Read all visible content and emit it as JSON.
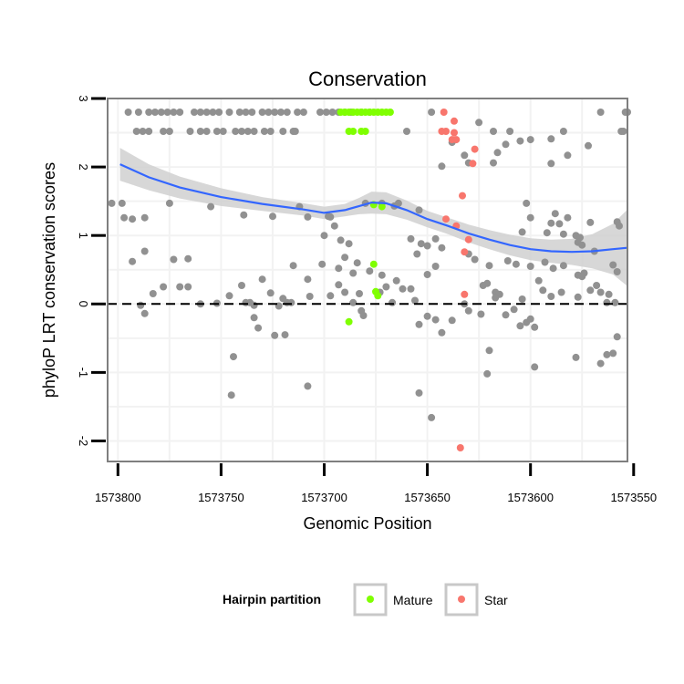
{
  "chart_data": {
    "type": "scatter",
    "title": "Conservation",
    "xlabel": "Genomic Position",
    "ylabel": "phyloP LRT conservation scores",
    "x_reversed": true,
    "xlim": [
      1573805,
      1573553
    ],
    "ylim": [
      -2.3,
      3.0
    ],
    "x_ticks": [
      1573800,
      1573750,
      1573700,
      1573650,
      1573600,
      1573550
    ],
    "x_tick_labels": [
      "1573800",
      "1573750",
      "1573700",
      "1573650",
      "1573600",
      "1573550"
    ],
    "y_ticks": [
      -2,
      -1,
      0,
      1,
      2,
      3
    ],
    "y_tick_labels": [
      "-2",
      "-1",
      "0",
      "1",
      "2",
      "3"
    ],
    "reference_line": {
      "y": 0,
      "style": "dashed"
    },
    "legend": {
      "title": "Hairpin partition",
      "position": "bottom",
      "entries": [
        {
          "label": "Mature",
          "color": "#7fff00"
        },
        {
          "label": "Star",
          "color": "#f8766d"
        }
      ]
    },
    "colors": {
      "background_points": "#919191",
      "mature": "#7fff00",
      "star": "#f8766d",
      "smooth_line": "#3366ff",
      "ribbon": "#d0d0d0"
    },
    "smooth": {
      "x": [
        1573799,
        1573785,
        1573770,
        1573750,
        1573730,
        1573710,
        1573700,
        1573690,
        1573683,
        1573677,
        1573670,
        1573660,
        1573650,
        1573640,
        1573630,
        1573620,
        1573610,
        1573600,
        1573590,
        1573580,
        1573570,
        1573560,
        1573553
      ],
      "y": [
        2.04,
        1.85,
        1.7,
        1.56,
        1.46,
        1.38,
        1.33,
        1.37,
        1.43,
        1.48,
        1.47,
        1.37,
        1.24,
        1.14,
        1.03,
        0.94,
        0.86,
        0.8,
        0.77,
        0.76,
        0.77,
        0.8,
        0.82
      ],
      "upper": [
        2.28,
        2.04,
        1.86,
        1.69,
        1.56,
        1.47,
        1.42,
        1.46,
        1.55,
        1.64,
        1.63,
        1.51,
        1.36,
        1.26,
        1.16,
        1.08,
        1.01,
        0.96,
        0.94,
        0.95,
        1.02,
        1.17,
        1.38
      ],
      "lower": [
        1.8,
        1.66,
        1.54,
        1.43,
        1.36,
        1.29,
        1.24,
        1.28,
        1.31,
        1.32,
        1.31,
        1.23,
        1.12,
        1.02,
        0.9,
        0.8,
        0.71,
        0.64,
        0.6,
        0.57,
        0.52,
        0.43,
        0.26
      ]
    },
    "series": [
      {
        "name": "Other",
        "points": [
          [
            1573795,
            2.8
          ],
          [
            1573790,
            2.8
          ],
          [
            1573785,
            2.8
          ],
          [
            1573782,
            2.8
          ],
          [
            1573779,
            2.8
          ],
          [
            1573776,
            2.8
          ],
          [
            1573773,
            2.8
          ],
          [
            1573770,
            2.8
          ],
          [
            1573763,
            2.8
          ],
          [
            1573760,
            2.8
          ],
          [
            1573757,
            2.8
          ],
          [
            1573754,
            2.8
          ],
          [
            1573751,
            2.8
          ],
          [
            1573746,
            2.8
          ],
          [
            1573741,
            2.8
          ],
          [
            1573738,
            2.8
          ],
          [
            1573735,
            2.8
          ],
          [
            1573730,
            2.8
          ],
          [
            1573727,
            2.8
          ],
          [
            1573724,
            2.8
          ],
          [
            1573721,
            2.8
          ],
          [
            1573718,
            2.8
          ],
          [
            1573713,
            2.8
          ],
          [
            1573710,
            2.8
          ],
          [
            1573702,
            2.8
          ],
          [
            1573699,
            2.8
          ],
          [
            1573696,
            2.8
          ],
          [
            1573693,
            2.8
          ],
          [
            1573690,
            2.8
          ],
          [
            1573687,
            2.8
          ],
          [
            1573682,
            2.8
          ],
          [
            1573678,
            2.8
          ],
          [
            1573648,
            2.8
          ],
          [
            1573566,
            2.8
          ],
          [
            1573554,
            2.8
          ],
          [
            1573553,
            2.8
          ],
          [
            1573791,
            2.52
          ],
          [
            1573788,
            2.52
          ],
          [
            1573785,
            2.52
          ],
          [
            1573778,
            2.52
          ],
          [
            1573775,
            2.52
          ],
          [
            1573765,
            2.52
          ],
          [
            1573760,
            2.52
          ],
          [
            1573757,
            2.52
          ],
          [
            1573752,
            2.52
          ],
          [
            1573749,
            2.52
          ],
          [
            1573743,
            2.52
          ],
          [
            1573740,
            2.52
          ],
          [
            1573737,
            2.52
          ],
          [
            1573734,
            2.52
          ],
          [
            1573729,
            2.52
          ],
          [
            1573726,
            2.52
          ],
          [
            1573720,
            2.52
          ],
          [
            1573715,
            2.52
          ],
          [
            1573714,
            2.52
          ],
          [
            1573660,
            2.52
          ],
          [
            1573618,
            2.52
          ],
          [
            1573610,
            2.52
          ],
          [
            1573584,
            2.52
          ],
          [
            1573556,
            2.52
          ],
          [
            1573555,
            2.52
          ],
          [
            1573625,
            2.65
          ],
          [
            1573590,
            2.41
          ],
          [
            1573605,
            2.38
          ],
          [
            1573600,
            2.4
          ],
          [
            1573638,
            2.36
          ],
          [
            1573612,
            2.33
          ],
          [
            1573572,
            2.31
          ],
          [
            1573616,
            2.21
          ],
          [
            1573632,
            2.17
          ],
          [
            1573582,
            2.17
          ],
          [
            1573630,
            2.06
          ],
          [
            1573643,
            2.01
          ],
          [
            1573590,
            2.05
          ],
          [
            1573618,
            2.06
          ],
          [
            1573803,
            1.47
          ],
          [
            1573798,
            1.47
          ],
          [
            1573775,
            1.47
          ],
          [
            1573755,
            1.42
          ],
          [
            1573739,
            1.3
          ],
          [
            1573725,
            1.28
          ],
          [
            1573712,
            1.42
          ],
          [
            1573708,
            1.27
          ],
          [
            1573698,
            1.28
          ],
          [
            1573695,
            1.14
          ],
          [
            1573680,
            1.47
          ],
          [
            1573672,
            1.47
          ],
          [
            1573666,
            1.43
          ],
          [
            1573664,
            1.47
          ],
          [
            1573654,
            1.37
          ],
          [
            1573602,
            1.47
          ],
          [
            1573588,
            1.32
          ],
          [
            1573582,
            1.26
          ],
          [
            1573571,
            1.19
          ],
          [
            1573558,
            1.2
          ],
          [
            1573557,
            1.14
          ],
          [
            1573600,
            1.26
          ],
          [
            1573590,
            1.18
          ],
          [
            1573586,
            1.17
          ],
          [
            1573604,
            1.05
          ],
          [
            1573592,
            1.04
          ],
          [
            1573584,
            1.02
          ],
          [
            1573578,
            1.0
          ],
          [
            1573576,
            0.97
          ],
          [
            1573797,
            1.26
          ],
          [
            1573793,
            1.24
          ],
          [
            1573787,
            1.26
          ],
          [
            1573700,
            1.0
          ],
          [
            1573697,
            1.27
          ],
          [
            1573692,
            0.93
          ],
          [
            1573690,
            0.68
          ],
          [
            1573688,
            0.88
          ],
          [
            1573684,
            0.6
          ],
          [
            1573678,
            0.48
          ],
          [
            1573672,
            0.42
          ],
          [
            1573658,
            0.95
          ],
          [
            1573653,
            0.88
          ],
          [
            1573650,
            0.85
          ],
          [
            1573646,
            0.95
          ],
          [
            1573643,
            0.82
          ],
          [
            1573655,
            0.73
          ],
          [
            1573646,
            0.55
          ],
          [
            1573650,
            0.43
          ],
          [
            1573630,
            0.73
          ],
          [
            1573627,
            0.65
          ],
          [
            1573620,
            0.56
          ],
          [
            1573611,
            0.63
          ],
          [
            1573607,
            0.58
          ],
          [
            1573600,
            0.55
          ],
          [
            1573593,
            0.61
          ],
          [
            1573589,
            0.52
          ],
          [
            1573584,
            0.56
          ],
          [
            1573577,
            0.42
          ],
          [
            1573574,
            0.45
          ],
          [
            1573569,
            0.77
          ],
          [
            1573560,
            0.57
          ],
          [
            1573558,
            0.47
          ],
          [
            1573577,
            0.9
          ],
          [
            1573575,
            0.86
          ],
          [
            1573793,
            0.62
          ],
          [
            1573787,
            0.77
          ],
          [
            1573773,
            0.65
          ],
          [
            1573766,
            0.66
          ],
          [
            1573778,
            0.25
          ],
          [
            1573783,
            0.15
          ],
          [
            1573766,
            0.25
          ],
          [
            1573770,
            0.25
          ],
          [
            1573789,
            -0.02
          ],
          [
            1573787,
            -0.14
          ],
          [
            1573760,
            0.0
          ],
          [
            1573752,
            0.01
          ],
          [
            1573746,
            0.12
          ],
          [
            1573740,
            0.27
          ],
          [
            1573738,
            0.02
          ],
          [
            1573736,
            0.02
          ],
          [
            1573734,
            -0.02
          ],
          [
            1573734,
            -0.2
          ],
          [
            1573732,
            -0.35
          ],
          [
            1573730,
            0.36
          ],
          [
            1573726,
            0.16
          ],
          [
            1573722,
            -0.03
          ],
          [
            1573720,
            0.08
          ],
          [
            1573718,
            0.02
          ],
          [
            1573716,
            0.02
          ],
          [
            1573719,
            -0.45
          ],
          [
            1573724,
            -0.46
          ],
          [
            1573715,
            0.56
          ],
          [
            1573707,
            0.11
          ],
          [
            1573708,
            0.36
          ],
          [
            1573701,
            0.58
          ],
          [
            1573697,
            0.12
          ],
          [
            1573693,
            0.28
          ],
          [
            1573693,
            0.52
          ],
          [
            1573690,
            0.17
          ],
          [
            1573686,
            0.45
          ],
          [
            1573686,
            0.02
          ],
          [
            1573683,
            0.15
          ],
          [
            1573682,
            -0.1
          ],
          [
            1573681,
            -0.17
          ],
          [
            1573673,
            0.17
          ],
          [
            1573670,
            0.25
          ],
          [
            1573667,
            0.02
          ],
          [
            1573665,
            0.34
          ],
          [
            1573662,
            0.22
          ],
          [
            1573658,
            0.22
          ],
          [
            1573656,
            0.05
          ],
          [
            1573654,
            -0.3
          ],
          [
            1573650,
            -0.18
          ],
          [
            1573646,
            -0.23
          ],
          [
            1573638,
            -0.24
          ],
          [
            1573632,
            0.0
          ],
          [
            1573630,
            -0.1
          ],
          [
            1573624,
            -0.15
          ],
          [
            1573621,
            0.3
          ],
          [
            1573617,
            0.17
          ],
          [
            1573615,
            0.14
          ],
          [
            1573612,
            -0.16
          ],
          [
            1573608,
            -0.08
          ],
          [
            1573605,
            -0.32
          ],
          [
            1573602,
            -0.27
          ],
          [
            1573600,
            -0.22
          ],
          [
            1573598,
            -0.34
          ],
          [
            1573596,
            0.34
          ],
          [
            1573594,
            0.2
          ],
          [
            1573590,
            0.11
          ],
          [
            1573585,
            0.17
          ],
          [
            1573577,
            0.1
          ],
          [
            1573575,
            0.4
          ],
          [
            1573571,
            0.2
          ],
          [
            1573568,
            0.27
          ],
          [
            1573566,
            0.17
          ],
          [
            1573563,
            0.02
          ],
          [
            1573562,
            0.14
          ],
          [
            1573559,
            0.02
          ],
          [
            1573623,
            0.27
          ],
          [
            1573617,
            0.09
          ],
          [
            1573604,
            0.07
          ],
          [
            1573744,
            -0.77
          ],
          [
            1573745,
            -1.33
          ],
          [
            1573708,
            -1.2
          ],
          [
            1573654,
            -1.3
          ],
          [
            1573648,
            -1.66
          ],
          [
            1573643,
            -0.42
          ],
          [
            1573620,
            -0.68
          ],
          [
            1573621,
            -1.02
          ],
          [
            1573598,
            -0.92
          ],
          [
            1573578,
            -0.78
          ],
          [
            1573566,
            -0.87
          ],
          [
            1573563,
            -0.74
          ],
          [
            1573560,
            -0.72
          ],
          [
            1573558,
            -0.48
          ]
        ]
      },
      {
        "name": "Mature",
        "points": [
          [
            1573692,
            2.8
          ],
          [
            1573690,
            2.8
          ],
          [
            1573688,
            2.8
          ],
          [
            1573686,
            2.8
          ],
          [
            1573684,
            2.8
          ],
          [
            1573682,
            2.8
          ],
          [
            1573680,
            2.8
          ],
          [
            1573678,
            2.8
          ],
          [
            1573676,
            2.8
          ],
          [
            1573674,
            2.8
          ],
          [
            1573672,
            2.8
          ],
          [
            1573670,
            2.8
          ],
          [
            1573668,
            2.8
          ],
          [
            1573688,
            2.52
          ],
          [
            1573686,
            2.52
          ],
          [
            1573682,
            2.52
          ],
          [
            1573680,
            2.52
          ],
          [
            1573676,
            1.45
          ],
          [
            1573672,
            1.42
          ],
          [
            1573676,
            0.58
          ],
          [
            1573675,
            0.18
          ],
          [
            1573674,
            0.12
          ],
          [
            1573688,
            -0.26
          ]
        ]
      },
      {
        "name": "Star",
        "points": [
          [
            1573642,
            2.8
          ],
          [
            1573637,
            2.67
          ],
          [
            1573643,
            2.52
          ],
          [
            1573641,
            2.52
          ],
          [
            1573637,
            2.5
          ],
          [
            1573638,
            2.4
          ],
          [
            1573636,
            2.4
          ],
          [
            1573627,
            2.26
          ],
          [
            1573628,
            2.05
          ],
          [
            1573633,
            1.58
          ],
          [
            1573641,
            1.24
          ],
          [
            1573636,
            1.14
          ],
          [
            1573630,
            0.94
          ],
          [
            1573632,
            0.76
          ],
          [
            1573632,
            0.14
          ],
          [
            1573634,
            -2.1
          ]
        ]
      }
    ]
  }
}
